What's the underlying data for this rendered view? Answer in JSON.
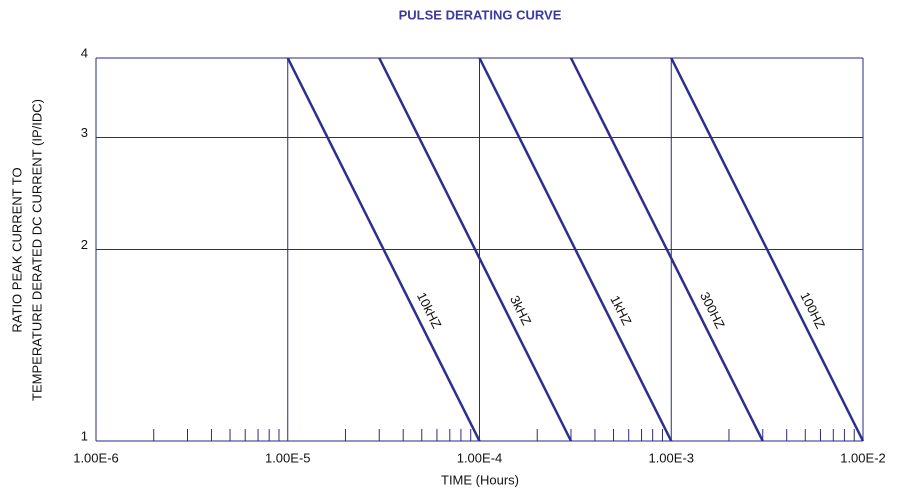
{
  "chart_data": {
    "type": "line",
    "title": "PULSE DERATING CURVE",
    "xlabel": "TIME (Hours)",
    "ylabel": [
      "RATIO PEAK CURRENT TO",
      "TEMPERATURE DERATED DC CURRENT (IP/IDC)"
    ],
    "xscale": "log",
    "yscale": "log",
    "grid": true,
    "xlim": [
      1e-06,
      0.01
    ],
    "ylim": [
      1,
      4
    ],
    "xticks": [
      {
        "value": 1e-06,
        "label": "1.00E-6"
      },
      {
        "value": 1e-05,
        "label": "1.00E-5"
      },
      {
        "value": 0.0001,
        "label": "1.00E-4"
      },
      {
        "value": 0.001,
        "label": "1.00E-3"
      },
      {
        "value": 0.01,
        "label": "1.00E-2"
      }
    ],
    "xminorticks": [
      2e-06,
      3e-06,
      4e-06,
      5e-06,
      6e-06,
      7e-06,
      8e-06,
      9e-06,
      2e-05,
      3e-05,
      4e-05,
      5e-05,
      6e-05,
      7e-05,
      8e-05,
      9e-05,
      0.0002,
      0.0003,
      0.0004,
      0.0005,
      0.0006,
      0.0007,
      0.0008,
      0.0009,
      0.002,
      0.003,
      0.004,
      0.005,
      0.006,
      0.007,
      0.008,
      0.009
    ],
    "yticks": [
      1,
      2,
      3,
      4
    ],
    "series": [
      {
        "name": "10kHZ",
        "color": "#2e2e8c",
        "x": [
          1e-05,
          0.0001
        ],
        "values": [
          4,
          1
        ]
      },
      {
        "name": "3kHZ",
        "color": "#2e2e8c",
        "x": [
          3e-05,
          0.0003
        ],
        "values": [
          4,
          1
        ]
      },
      {
        "name": "1kHZ",
        "color": "#2e2e8c",
        "x": [
          0.0001,
          0.001
        ],
        "values": [
          4,
          1
        ]
      },
      {
        "name": "300HZ",
        "color": "#2e2e8c",
        "x": [
          0.0003,
          0.003
        ],
        "values": [
          4,
          1
        ]
      },
      {
        "name": "100HZ",
        "color": "#2e2e8c",
        "x": [
          0.001,
          0.01
        ],
        "values": [
          4,
          1
        ]
      }
    ]
  }
}
